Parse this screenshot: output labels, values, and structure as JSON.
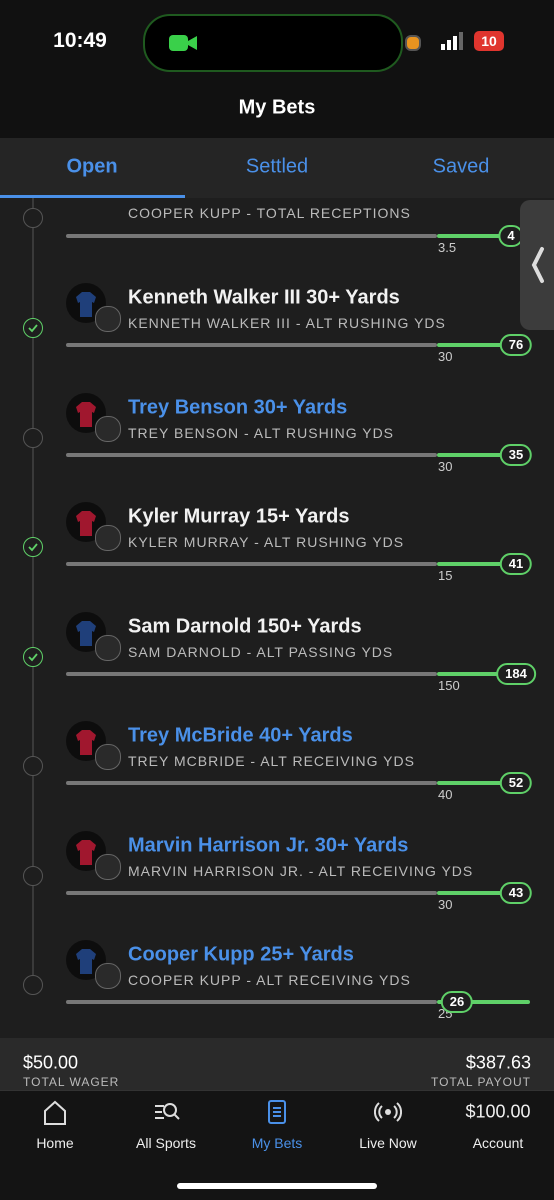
{
  "status_bar": {
    "time": "10:49",
    "battery": "10"
  },
  "header": {
    "title": "My Bets"
  },
  "tabs": [
    "Open",
    "Settled",
    "Saved"
  ],
  "active_tab": 0,
  "partial_leg": {
    "subtitle": "COOPER KUPP - TOTAL RECEPTIONS",
    "line": 3.5,
    "current": 4
  },
  "legs": [
    {
      "title": "Kenneth Walker III 30+ Yards",
      "subtitle": "KENNETH WALKER III - ALT RUSHING YDS",
      "line": 30,
      "current": 76,
      "checked": true,
      "highlighted": false,
      "jersey_color": "#1f3f7a"
    },
    {
      "title": "Trey Benson 30+ Yards",
      "subtitle": "TREY BENSON - ALT RUSHING YDS",
      "line": 30,
      "current": 35,
      "checked": false,
      "highlighted": true,
      "jersey_color": "#a0172e"
    },
    {
      "title": "Kyler Murray 15+ Yards",
      "subtitle": "KYLER MURRAY - ALT RUSHING YDS",
      "line": 15,
      "current": 41,
      "checked": true,
      "highlighted": false,
      "jersey_color": "#a0172e"
    },
    {
      "title": "Sam Darnold 150+ Yards",
      "subtitle": "SAM DARNOLD - ALT PASSING YDS",
      "line": 150,
      "current": 184,
      "checked": true,
      "highlighted": false,
      "jersey_color": "#1f3f7a"
    },
    {
      "title": "Trey McBride 40+ Yards",
      "subtitle": "TREY MCBRIDE - ALT RECEIVING YDS",
      "line": 40,
      "current": 52,
      "checked": false,
      "highlighted": true,
      "jersey_color": "#a0172e"
    },
    {
      "title": "Marvin Harrison Jr. 30+ Yards",
      "subtitle": "MARVIN HARRISON JR. - ALT RECEIVING YDS",
      "line": 30,
      "current": 43,
      "checked": false,
      "highlighted": true,
      "jersey_color": "#a0172e"
    },
    {
      "title": "Cooper Kupp 25+ Yards",
      "subtitle": "COOPER KUPP - ALT RECEIVING YDS",
      "line": 25,
      "current": 26,
      "checked": false,
      "highlighted": true,
      "jersey_color": "#1f3f7a"
    }
  ],
  "footer": {
    "wager": "$50.00",
    "wager_label": "TOTAL WAGER",
    "payout": "$387.63",
    "payout_label": "TOTAL PAYOUT"
  },
  "nav": [
    "Home",
    "All Sports",
    "My Bets",
    "Live Now",
    "Account"
  ],
  "balance": "$100.00",
  "active_nav": 2
}
